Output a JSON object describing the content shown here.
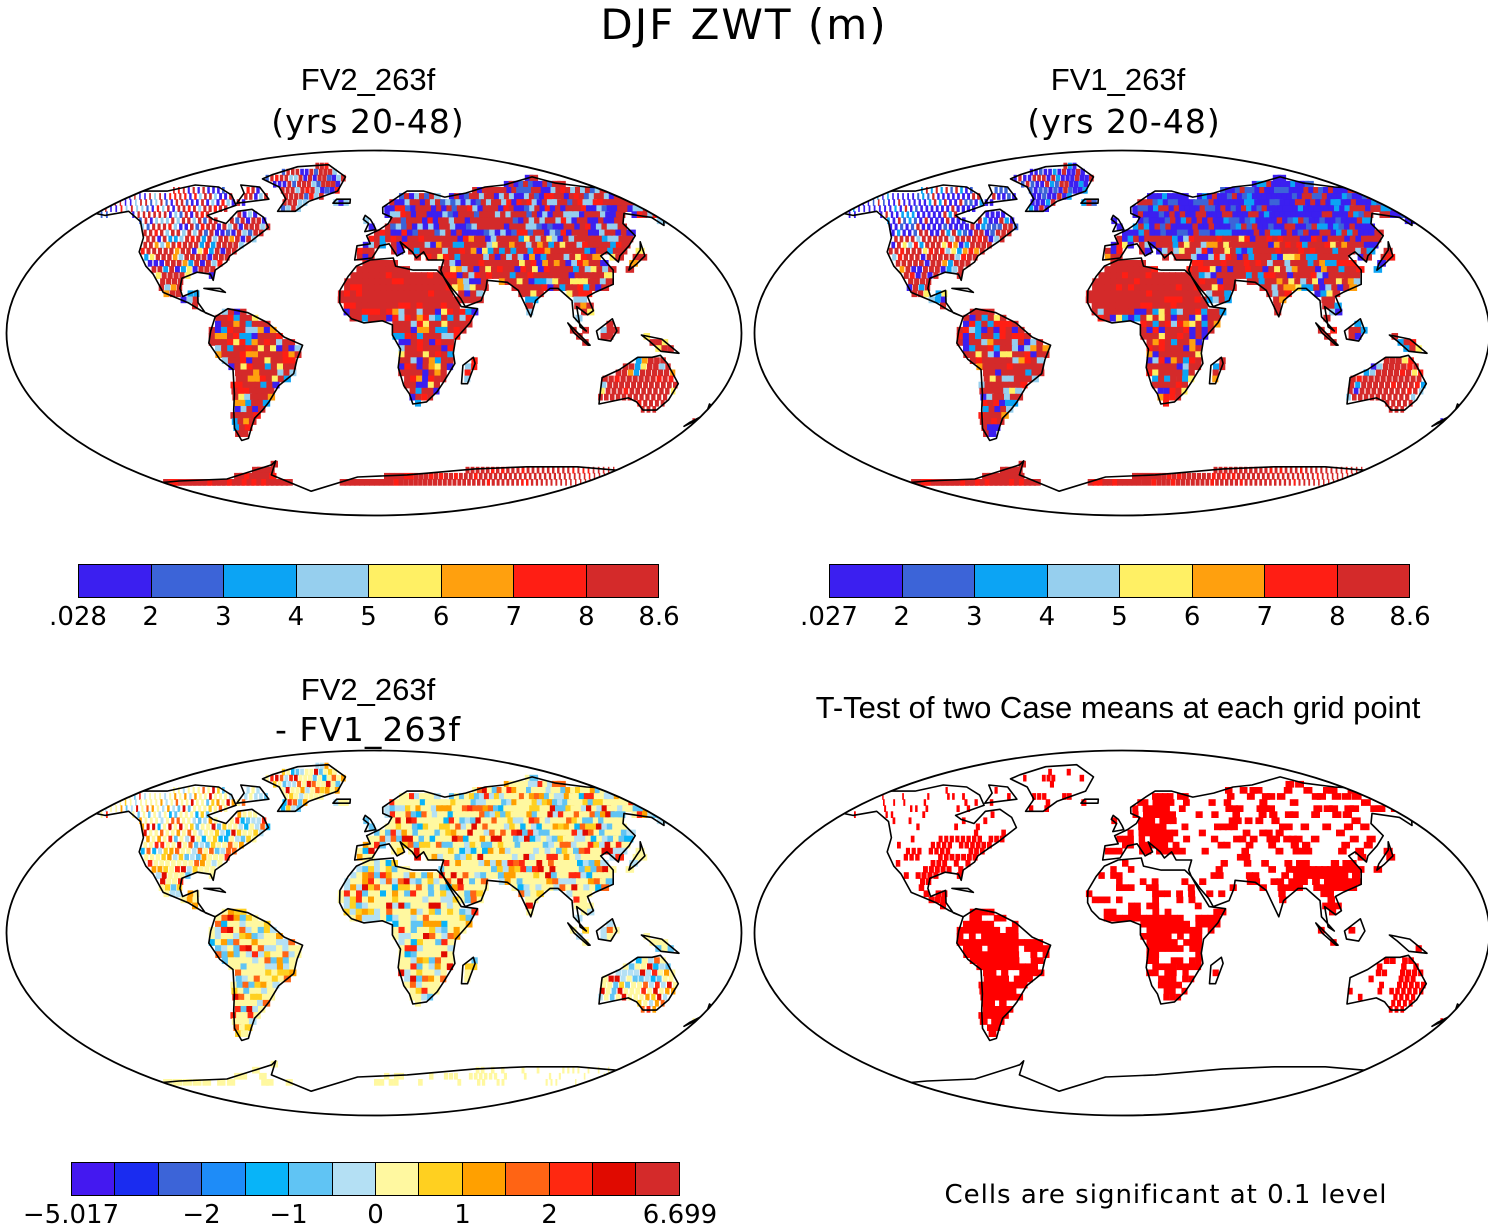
{
  "title": "DJF ZWT (m)",
  "panels": [
    {
      "id": "fv2",
      "title": "FV2_263f",
      "subtitle": "(yrs 20-48)"
    },
    {
      "id": "fv1",
      "title": "FV1_263f",
      "subtitle": "(yrs 20-48)"
    },
    {
      "id": "diff",
      "title": "FV2_263f",
      "subtitle": "- FV1_263f"
    },
    {
      "id": "ttest",
      "title": "T-Test of two Case means at each grid point"
    }
  ],
  "colorbars": {
    "fv2": {
      "labels": [
        ".028",
        "2",
        "3",
        "4",
        "5",
        "6",
        "7",
        "8",
        "8.6"
      ],
      "colors": [
        "#3b1ff0",
        "#3c64d8",
        "#0ca4f4",
        "#96cfee",
        "#fff064",
        "#ffa00e",
        "#ff1e14",
        "#d42a2a"
      ]
    },
    "fv1": {
      "labels": [
        ".027",
        "2",
        "3",
        "4",
        "5",
        "6",
        "7",
        "8",
        "8.6"
      ],
      "colors": [
        "#3b1ff0",
        "#3c64d8",
        "#0ca4f4",
        "#96cfee",
        "#fff064",
        "#ffa00e",
        "#ff1e14",
        "#d42a2a"
      ]
    },
    "diff": {
      "labels": [
        "-5.017",
        "-2",
        "-1",
        "0",
        "1",
        "2",
        "6.699"
      ],
      "label_slots": [
        0,
        3,
        5,
        7,
        9,
        11,
        14
      ],
      "colors": [
        "#4418f0",
        "#1a2cf0",
        "#3c64d8",
        "#1e8cf8",
        "#08b4f8",
        "#60c4f4",
        "#b4e0f4",
        "#fff8a0",
        "#ffd020",
        "#ffa000",
        "#ff6414",
        "#ff2810",
        "#e00a00",
        "#d42a2a"
      ]
    }
  },
  "note": "Cells are significant at 0.1 level",
  "palette": {
    "sig": "#ff0000",
    "ocean": "#ffffff"
  }
}
